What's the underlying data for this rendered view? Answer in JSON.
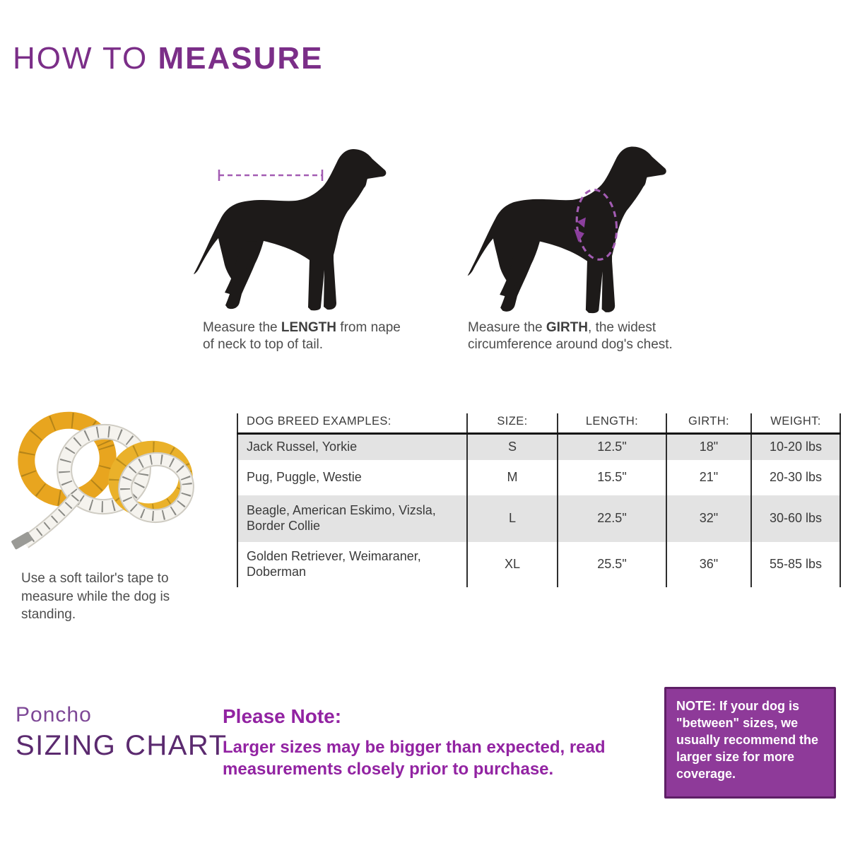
{
  "title": {
    "prefix": "HOW TO ",
    "emphasis": "MEASURE"
  },
  "diagrams": {
    "length": {
      "caption_pre": "Measure the ",
      "caption_bold": "LENGTH",
      "caption_post": " from nape of neck to top of tail."
    },
    "girth": {
      "caption_pre": "Measure the ",
      "caption_bold": "GIRTH",
      "caption_post": ", the widest circumference around dog's chest."
    }
  },
  "tape_note": "Use a soft tailor's tape to measure while the dog is standing.",
  "table": {
    "headers": [
      "DOG BREED EXAMPLES:",
      "SIZE:",
      "LENGTH:",
      "GIRTH:",
      "WEIGHT:"
    ],
    "rows": [
      {
        "breeds": "Jack Russel, Yorkie",
        "size": "S",
        "length": "12.5\"",
        "girth": "18\"",
        "weight": "10-20 lbs",
        "shaded": true
      },
      {
        "breeds": "Pug, Puggle, Westie",
        "size": "M",
        "length": "15.5\"",
        "girth": "21\"",
        "weight": "20-30 lbs",
        "shaded": false
      },
      {
        "breeds": "Beagle, American Eskimo, Vizsla, Border Collie",
        "size": "L",
        "length": "22.5\"",
        "girth": "32\"",
        "weight": "30-60 lbs",
        "shaded": true
      },
      {
        "breeds": "Golden Retriever, Weimaraner, Doberman",
        "size": "XL",
        "length": "25.5\"",
        "girth": "36\"",
        "weight": "55-85 lbs",
        "shaded": false
      }
    ]
  },
  "footer": {
    "product": "Poncho",
    "chart_label": "SIZING CHART",
    "note_title": "Please Note:",
    "note_body": "Larger sizes may be bigger than expected, read measurements closely prior to purchase.",
    "box_note": "NOTE: If your dog is \"between\" sizes, we usually recommend the larger size for more coverage."
  },
  "colors": {
    "title_purple": "#7b2e88",
    "brand_purple": "#7d4796",
    "chart_label_purple": "#5b2a6f",
    "note_text_purple": "#9223a2",
    "note_box_bg": "#8e3a99",
    "note_box_border": "#5e1f66",
    "measure_annotation": "#a35cb3",
    "table_stripe": "#e3e3e3",
    "dog_silhouette": "#1d1a19",
    "tape_yellow": "#e8a51f"
  }
}
